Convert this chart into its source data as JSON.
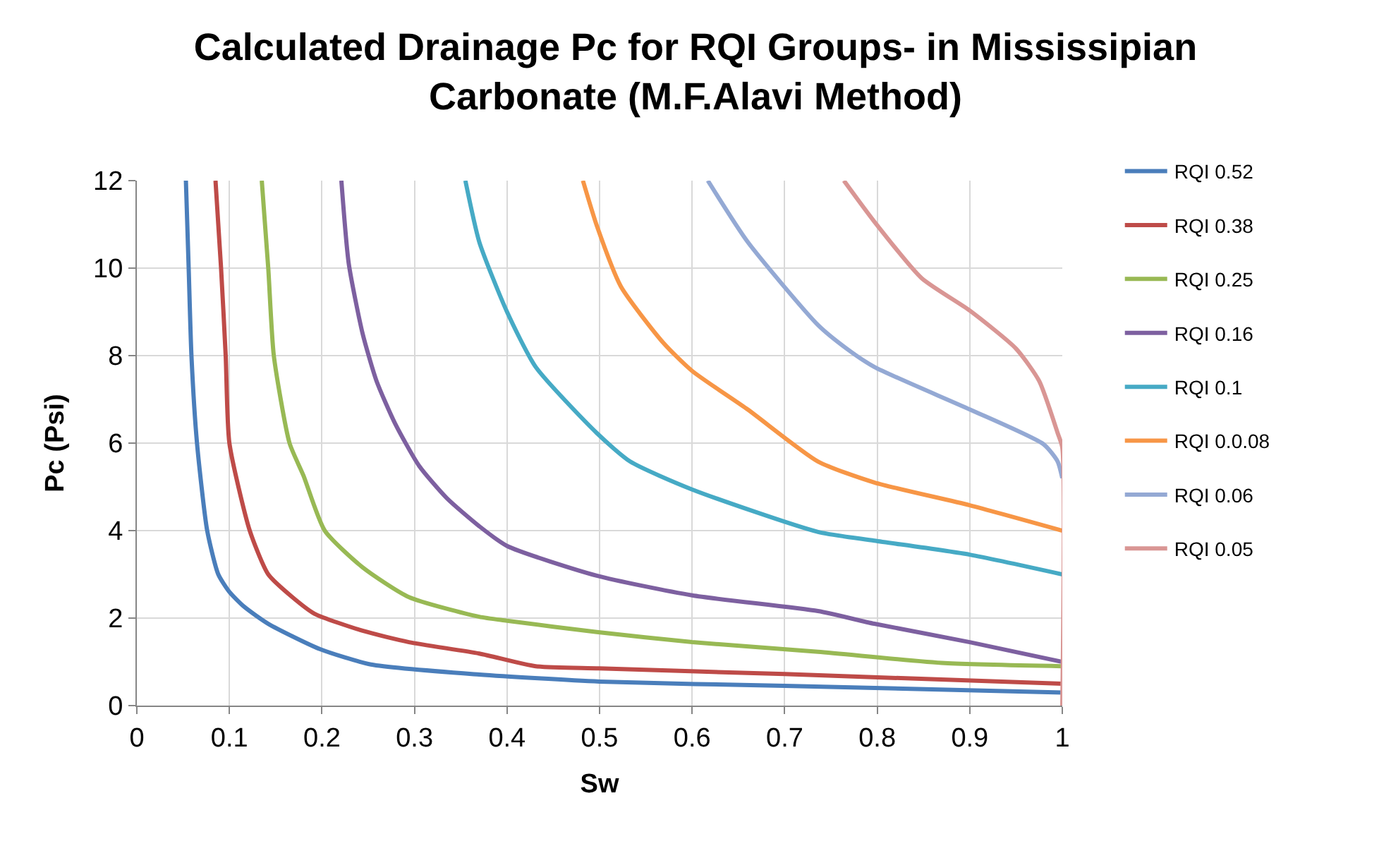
{
  "chart_data": {
    "type": "line",
    "title": "Calculated Drainage Pc for RQI Groups- in Mississipian Carbonate (M.F.Alavi Method)",
    "xlabel": "Sw",
    "ylabel": "Pc (Psi)",
    "xlim": [
      0,
      1
    ],
    "ylim": [
      0,
      12
    ],
    "xticks": [
      0,
      0.1,
      0.2,
      0.3,
      0.4,
      0.5,
      0.6,
      0.7,
      0.8,
      0.9,
      1
    ],
    "yticks": [
      0,
      2,
      4,
      6,
      8,
      10,
      12
    ],
    "grid": true,
    "legend": "right",
    "marker": "none",
    "line_style": "solid",
    "series": [
      {
        "name": "RQI 0.52",
        "color": "#4a7ebb",
        "x": [
          0.053,
          0.056,
          0.059,
          0.065,
          0.076,
          0.088,
          0.1,
          0.116,
          0.142,
          0.198,
          0.253,
          0.37,
          0.5,
          0.7,
          1.0
        ],
        "values": [
          12,
          10,
          8,
          6,
          4,
          3,
          2.6,
          2.26,
          1.87,
          1.29,
          0.94,
          0.71,
          0.55,
          0.45,
          0.3
        ]
      },
      {
        "name": "RQI 0.38",
        "color": "#be4b48",
        "x": [
          0.085,
          0.091,
          0.096,
          0.1,
          0.122,
          0.142,
          0.168,
          0.192,
          0.244,
          0.294,
          0.37,
          0.431,
          0.5,
          0.7,
          1.0
        ],
        "values": [
          12,
          10,
          8,
          6,
          4,
          3,
          2.48,
          2.1,
          1.71,
          1.45,
          1.19,
          0.9,
          0.85,
          0.72,
          0.5
        ]
      },
      {
        "name": "RQI 0.25",
        "color": "#98b954",
        "x": [
          0.135,
          0.142,
          0.148,
          0.165,
          0.18,
          0.203,
          0.244,
          0.294,
          0.37,
          0.4,
          0.497,
          0.6,
          0.736,
          0.873,
          1.0
        ],
        "values": [
          12,
          10,
          8,
          6,
          5.26,
          4,
          3.16,
          2.48,
          2.03,
          1.94,
          1.68,
          1.45,
          1.23,
          0.97,
          0.9
        ]
      },
      {
        "name": "RQI 0.16",
        "color": "#7d60a0",
        "x": [
          0.221,
          0.229,
          0.244,
          0.259,
          0.279,
          0.305,
          0.335,
          0.37,
          0.4,
          0.497,
          0.6,
          0.736,
          0.797,
          0.9,
          1.0
        ],
        "values": [
          12,
          10.1,
          8.5,
          7.42,
          6.45,
          5.48,
          4.74,
          4.1,
          3.65,
          2.97,
          2.52,
          2.16,
          1.87,
          1.45,
          1.0
        ]
      },
      {
        "name": "RQI 0.1",
        "color": "#46aac5",
        "x": [
          0.355,
          0.37,
          0.4,
          0.431,
          0.497,
          0.533,
          0.6,
          0.736,
          0.797,
          0.9,
          1.0
        ],
        "values": [
          12,
          10.6,
          9.0,
          7.74,
          6.23,
          5.58,
          4.94,
          3.97,
          3.77,
          3.45,
          3.0
        ]
      },
      {
        "name": "RQI 0.0.08",
        "color": "#f79646",
        "x": [
          0.482,
          0.497,
          0.523,
          0.569,
          0.6,
          0.66,
          0.736,
          0.797,
          0.9,
          1.0
        ],
        "values": [
          12,
          10.97,
          9.58,
          8.29,
          7.65,
          6.77,
          5.58,
          5.1,
          4.58,
          4.0
        ]
      },
      {
        "name": "RQI 0.06",
        "color": "#94a9d4",
        "x": [
          0.617,
          0.66,
          0.736,
          0.767,
          0.797,
          0.9,
          0.98,
          0.995,
          1.0
        ],
        "values": [
          12,
          10.6,
          8.7,
          8.16,
          7.74,
          6.77,
          5.97,
          5.58,
          5.2
        ]
      },
      {
        "name": "RQI 0.05",
        "color": "#d99694",
        "x": [
          0.764,
          0.797,
          0.848,
          0.9,
          0.95,
          0.975,
          0.995,
          1.0,
          1.0
        ],
        "values": [
          12,
          11.06,
          9.77,
          9.03,
          8.16,
          7.42,
          6.23,
          5.9,
          0
        ]
      }
    ]
  }
}
